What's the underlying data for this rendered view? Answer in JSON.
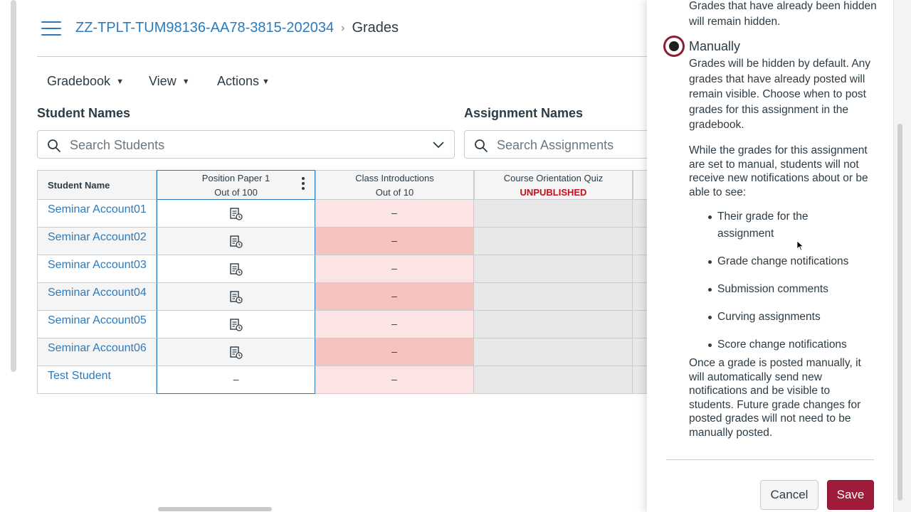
{
  "breadcrumb": {
    "course": "ZZ-TPLT-TUM98136-AA78-3815-202034",
    "separator": "›",
    "current": "Grades"
  },
  "menus": {
    "gradebook": "Gradebook",
    "view": "View",
    "actions": "Actions"
  },
  "filters": {
    "students_label": "Student Names",
    "students_placeholder": "Search Students",
    "assignments_label": "Assignment Names",
    "assignments_placeholder": "Search Assignments"
  },
  "table": {
    "student_header": "Student Name",
    "columns": [
      {
        "title": "Position Paper 1",
        "sub": "Out of 100"
      },
      {
        "title": "Class Introductions",
        "sub": "Out of 10"
      },
      {
        "title": "Course Orientation Quiz",
        "sub": "UNPUBLISHED"
      }
    ],
    "rows": [
      {
        "name": "Seminar Account01",
        "pp": "icon",
        "ci": "–"
      },
      {
        "name": "Seminar Account02",
        "pp": "icon",
        "ci": "–"
      },
      {
        "name": "Seminar Account03",
        "pp": "icon",
        "ci": "–"
      },
      {
        "name": "Seminar Account04",
        "pp": "icon",
        "ci": "–"
      },
      {
        "name": "Seminar Account05",
        "pp": "icon",
        "ci": "–"
      },
      {
        "name": "Seminar Account06",
        "pp": "icon",
        "ci": "–"
      },
      {
        "name": "Test Student",
        "pp": "–",
        "ci": "–"
      }
    ]
  },
  "tray": {
    "auto_tail": [
      "Grades that have already been hidden",
      "will remain hidden."
    ],
    "manual_label": "Manually",
    "manual_desc": [
      "Grades will be hidden by default. Any",
      "grades that have already posted will",
      "remain visible. Choose when to post",
      "grades for this assignment in the",
      "gradebook."
    ],
    "while_text": [
      "While the grades for this assignment",
      "are set to manual, students will not",
      "receive new notifications about or be",
      "able to see:"
    ],
    "bullets": [
      [
        "Their grade for the",
        "assignment"
      ],
      [
        "Grade change notifications"
      ],
      [
        "Submission comments"
      ],
      [
        "Curving assignments"
      ],
      [
        "Score change notifications"
      ]
    ],
    "once_text": [
      "Once a grade is posted manually, it",
      "will automatically send new",
      "notifications and be visible to",
      "students. Future grade changes for",
      "posted grades will not need to be",
      "manually posted."
    ],
    "cancel": "Cancel",
    "save": "Save"
  },
  "colors": {
    "link": "#2b7abc",
    "late_light": "#fce4e4",
    "late_dark": "#f6c4c0",
    "unpublished": "#c1101c",
    "save_bg": "#9e1b3a",
    "radio": "#8b1e35"
  }
}
